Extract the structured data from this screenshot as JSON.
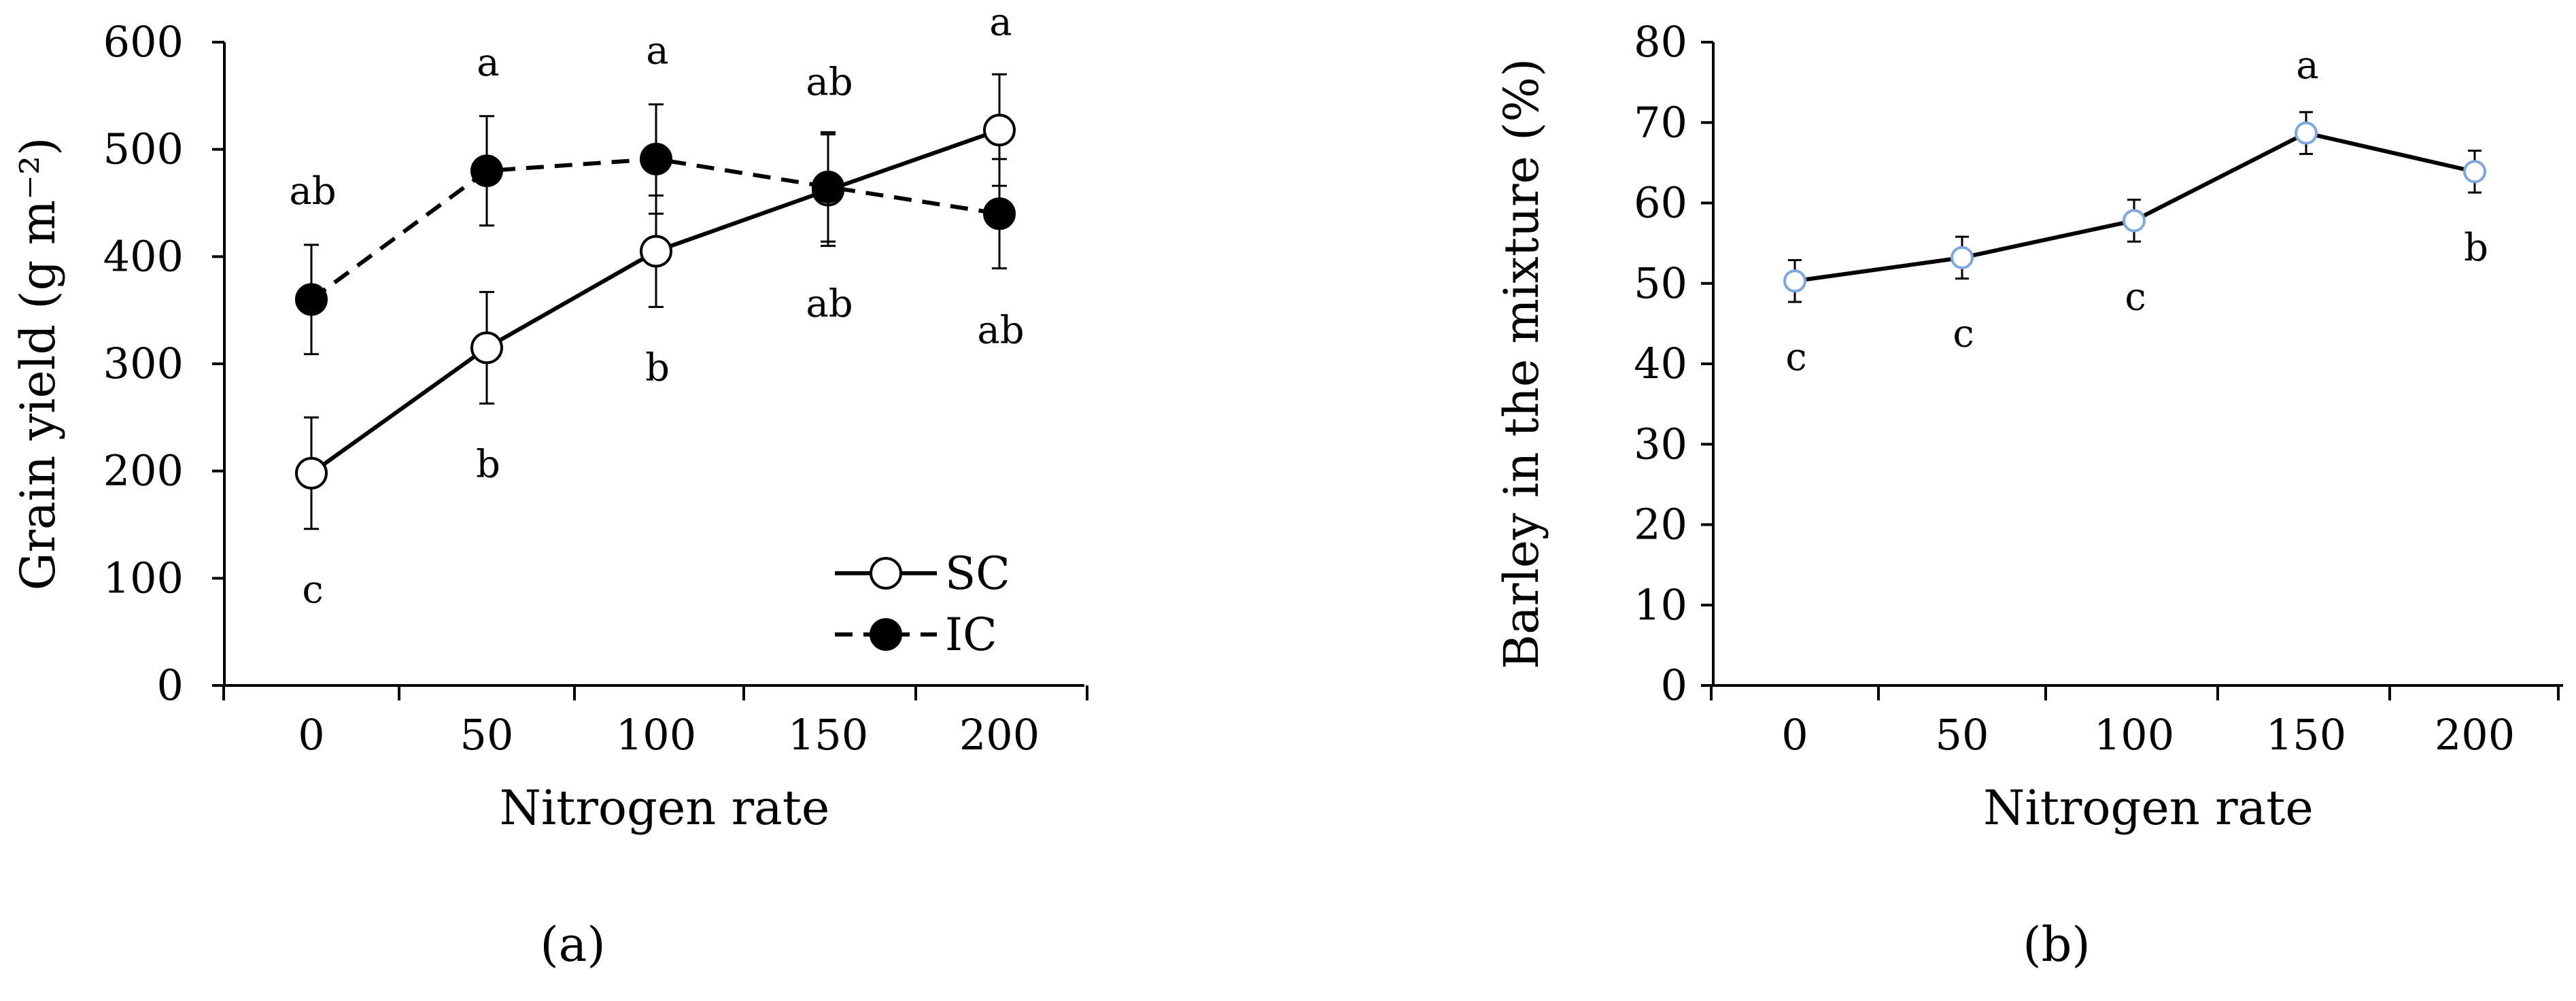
{
  "chart_data": [
    {
      "type": "line",
      "x": [
        0,
        50,
        100,
        150,
        200
      ],
      "xlabel": "Nitrogen rate",
      "ylabel": "Grain yield (g m⁻²)",
      "ylim": [
        0,
        600
      ],
      "yticks": [
        0,
        100,
        200,
        300,
        400,
        500,
        600
      ],
      "xticks": [
        "0",
        "50",
        "100",
        "150",
        "200"
      ],
      "grid": false,
      "legend_position": "bottom-right",
      "caption": "(a)",
      "series": [
        {
          "name": "SC",
          "style": "solid",
          "marker": "open-circle",
          "values": [
            198,
            315,
            405,
            462,
            518
          ],
          "errors": [
            52,
            52,
            52,
            52,
            52
          ],
          "letters": [
            "c",
            "b",
            "b",
            "ab",
            "a"
          ]
        },
        {
          "name": "IC",
          "style": "dashed",
          "marker": "filled-circle",
          "values": [
            360,
            480,
            491,
            465,
            440
          ],
          "errors": [
            51,
            51,
            51,
            51,
            51
          ],
          "letters": [
            "ab",
            "a",
            "a",
            "ab",
            "ab"
          ]
        }
      ]
    },
    {
      "type": "line",
      "x": [
        0,
        50,
        100,
        150,
        200
      ],
      "xlabel": "Nitrogen rate",
      "ylabel": "Barley in the mixture   (%)",
      "ylim": [
        0,
        80
      ],
      "yticks": [
        0,
        10,
        20,
        30,
        40,
        50,
        60,
        70,
        80
      ],
      "xticks": [
        "0",
        "50",
        "100",
        "150",
        "200"
      ],
      "grid": false,
      "caption": "(b)",
      "series": [
        {
          "style": "solid",
          "marker": "open-circle-blue",
          "values": [
            50.3,
            53.2,
            57.8,
            68.7,
            63.9
          ],
          "errors": [
            2.6,
            2.6,
            2.6,
            2.6,
            2.6
          ],
          "letters": [
            "c",
            "c",
            "c",
            "a",
            "b"
          ]
        }
      ]
    }
  ]
}
